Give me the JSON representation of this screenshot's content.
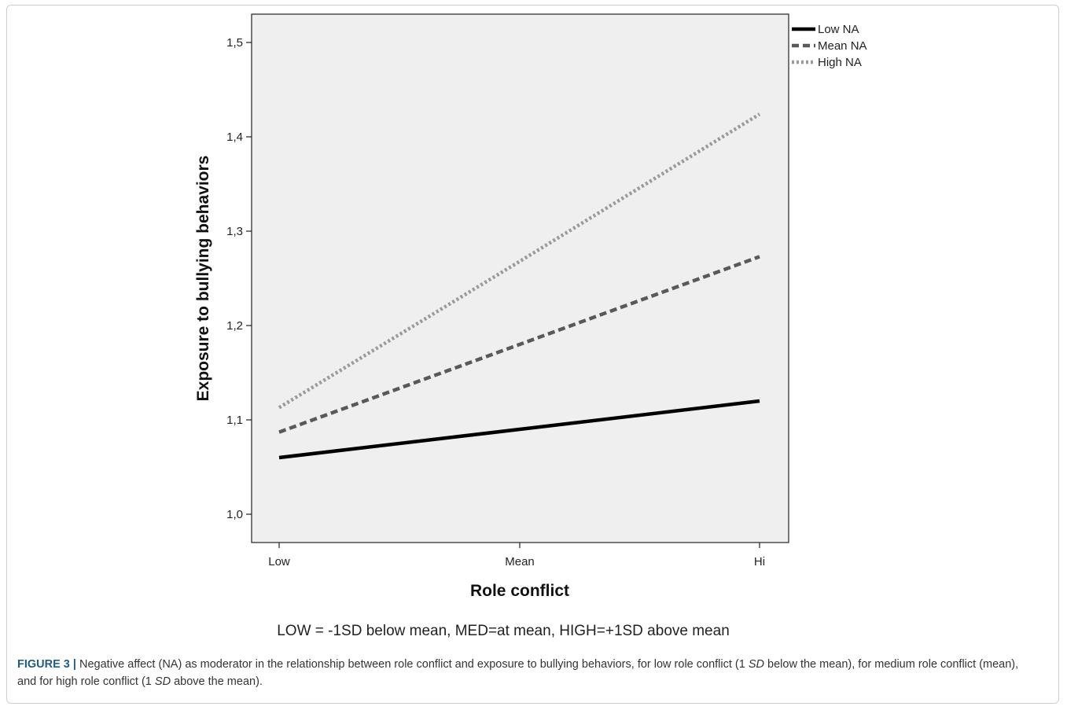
{
  "chart_data": {
    "type": "line",
    "x": [
      "Low",
      "Mean",
      "Hi"
    ],
    "series": [
      {
        "name": "Low NA",
        "values": [
          1.06,
          1.09,
          1.12
        ],
        "color": "#000000",
        "style": "solid"
      },
      {
        "name": "Mean NA",
        "values": [
          1.087,
          1.18,
          1.273
        ],
        "color": "#595959",
        "style": "dashed"
      },
      {
        "name": "High NA",
        "values": [
          1.113,
          1.268,
          1.424
        ],
        "color": "#9a9a9a",
        "style": "dotted"
      }
    ],
    "xlabel": "Role conflict",
    "ylabel": "Exposure to bullying behaviors",
    "ylim": [
      0.97,
      1.53
    ],
    "yticks": [
      "1,0",
      "1,1",
      "1,2",
      "1,3",
      "1,4",
      "1,5"
    ],
    "ytick_values": [
      1.0,
      1.1,
      1.2,
      1.3,
      1.4,
      1.5
    ],
    "grid": false,
    "legend_position": "outside top-right",
    "plot_background": "#efefef",
    "note": "LOW = -1SD below mean, MED=at mean, HIGH=+1SD above mean"
  },
  "caption": {
    "label": "FIGURE 3 |",
    "text_1": " Negative affect (NA) as moderator in the relationship between role conflict and exposure to bullying behaviors, for low role conflict (1 ",
    "sd_1": "SD",
    "text_2": " below the mean), for medium role conflict (mean), and for high role conflict (1 ",
    "sd_2": "SD",
    "text_3": " above the mean)."
  }
}
